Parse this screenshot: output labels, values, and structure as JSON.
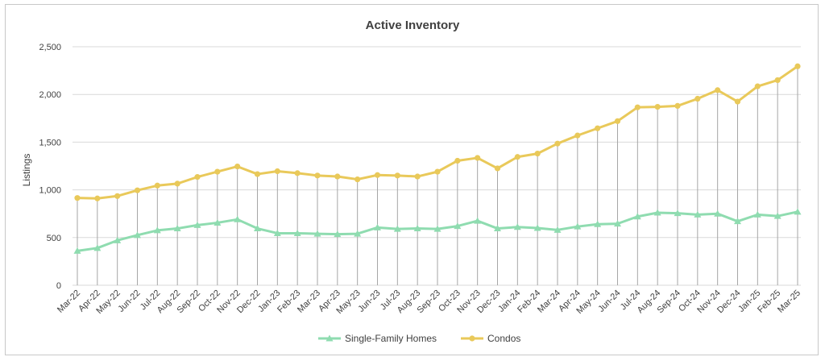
{
  "chart_data": {
    "type": "line",
    "title": "Active Inventory",
    "ylabel": "Listings",
    "xlabel": "",
    "ylim": [
      0,
      2500
    ],
    "yticks": [
      0,
      500,
      1000,
      1500,
      2000,
      2500
    ],
    "ytick_labels": [
      "0",
      "500",
      "1,000",
      "1,500",
      "2,000",
      "2,500"
    ],
    "grid": "horizontal",
    "legend_position": "bottom",
    "drop_lines": true,
    "categories": [
      "Mar-22",
      "Apr-22",
      "May-22",
      "Jun-22",
      "Jul-22",
      "Aug-22",
      "Sep-22",
      "Oct-22",
      "Nov-22",
      "Dec-22",
      "Jan-23",
      "Feb-23",
      "Mar-23",
      "Apr-23",
      "May-23",
      "Jun-23",
      "Jul-23",
      "Aug-23",
      "Sep-23",
      "Oct-23",
      "Nov-23",
      "Dec-23",
      "Jan-24",
      "Feb-24",
      "Mar-24",
      "Apr-24",
      "May-24",
      "Jun-24",
      "Jul-24",
      "Aug-24",
      "Sep-24",
      "Oct-24",
      "Nov-24",
      "Dec-24",
      "Jan-25",
      "Feb-25",
      "Mar-25"
    ],
    "series": [
      {
        "name": "Single-Family Homes",
        "color": "#8fdcb0",
        "marker": "triangle",
        "values": [
          360,
          390,
          470,
          525,
          575,
          595,
          630,
          655,
          690,
          595,
          545,
          545,
          540,
          535,
          540,
          605,
          590,
          595,
          590,
          620,
          675,
          595,
          610,
          600,
          580,
          615,
          640,
          645,
          720,
          760,
          755,
          740,
          750,
          670,
          740,
          725,
          770
        ]
      },
      {
        "name": "Condos",
        "color": "#e9c95a",
        "marker": "circle",
        "values": [
          915,
          910,
          935,
          995,
          1045,
          1065,
          1135,
          1190,
          1245,
          1165,
          1195,
          1175,
          1150,
          1140,
          1110,
          1155,
          1150,
          1140,
          1190,
          1305,
          1335,
          1225,
          1345,
          1380,
          1485,
          1570,
          1645,
          1720,
          1865,
          1870,
          1880,
          1955,
          2045,
          1925,
          2085,
          2150,
          2295
        ]
      }
    ]
  }
}
